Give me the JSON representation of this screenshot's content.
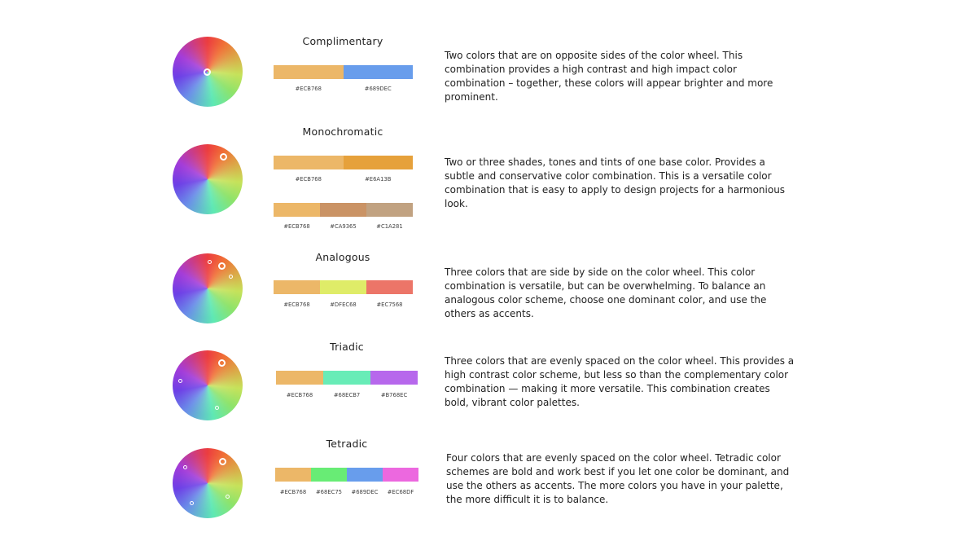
{
  "schemes": [
    {
      "title": "Complimentary",
      "description": "Two colors that are on opposite sides of the color wheel. This combination provides a high contrast and high impact color combination – together, these colors will appear brighter and more prominent.",
      "palettes": [
        {
          "colors": [
            "#ECB768",
            "#689DEC"
          ],
          "labels": [
            "#ECB768",
            "#689DEC"
          ]
        }
      ]
    },
    {
      "title": "Monochromatic",
      "description": "Two or three shades, tones and tints of one base color. Provides a subtle and conservative color combination. This is a versatile color combination that is easy to apply to design projects for a harmonious look.",
      "palettes": [
        {
          "colors": [
            "#ECB768",
            "#E6A13B"
          ],
          "labels": [
            "#ECB768",
            "#E6A13B"
          ]
        },
        {
          "colors": [
            "#ECB768",
            "#CA9365",
            "#C1A281"
          ],
          "labels": [
            "#ECB768",
            "#CA9365",
            "#C1A281"
          ]
        }
      ]
    },
    {
      "title": "Analogous",
      "description": "Three colors that are side by side on the color wheel. This color combination is versatile, but can be overwhelming. To balance an analogous color scheme, choose one dominant color, and use the others as accents.",
      "palettes": [
        {
          "colors": [
            "#ECB768",
            "#DFEC68",
            "#EC7568"
          ],
          "labels": [
            "#ECB768",
            "#DFEC68",
            "#EC7568"
          ]
        }
      ]
    },
    {
      "title": "Triadic",
      "description": "Three colors that are evenly spaced on the color wheel. This provides a high contrast color scheme, but less so than the complementary color combination — making it more versatile. This combination creates bold, vibrant color palettes.",
      "palettes": [
        {
          "colors": [
            "#ECB768",
            "#68ECB7",
            "#B768EC"
          ],
          "labels": [
            "#ECB768",
            "#68ECB7",
            "#B768EC"
          ]
        }
      ]
    },
    {
      "title": "Tetradic",
      "description": "Four colors that are evenly spaced on the color wheel. Tetradic color schemes are bold and work best if you let one color be dominant, and use the others as accents. The more colors you have in your palette, the more difficult it is to balance.",
      "palettes": [
        {
          "colors": [
            "#ECB768",
            "#68EC75",
            "#689DEC",
            "#EC68DF"
          ],
          "labels": [
            "#ECB768",
            "#68EC75",
            "#689DEC",
            "#EC68DF"
          ]
        }
      ]
    }
  ]
}
